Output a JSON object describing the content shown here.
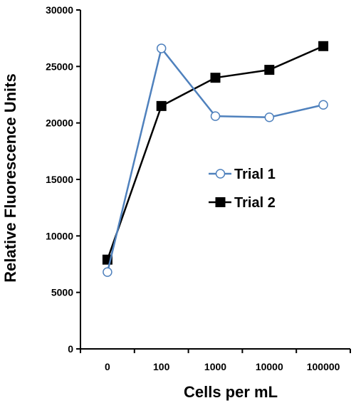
{
  "chart_data": {
    "type": "line",
    "categories": [
      "0",
      "100",
      "1000",
      "10000",
      "100000"
    ],
    "xlabel": "Cells per mL",
    "ylabel": "Relative Fluorescence Units",
    "ylim": [
      0,
      30000
    ],
    "yticks": [
      0,
      5000,
      10000,
      15000,
      20000,
      25000,
      30000
    ],
    "grid": false,
    "legend_position": "center-right",
    "series": [
      {
        "name": "Trial 1",
        "values": [
          6800,
          26600,
          20600,
          20500,
          21600
        ],
        "color": "#4f81bd",
        "marker": "open-circle"
      },
      {
        "name": "Trial 2",
        "values": [
          7900,
          21500,
          24000,
          24700,
          26800
        ],
        "color": "#000000",
        "marker": "filled-square"
      }
    ]
  }
}
